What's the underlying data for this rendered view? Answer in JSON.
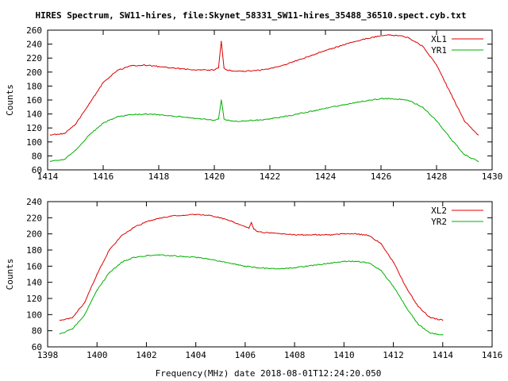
{
  "figure": {
    "title": "HIRES Spectrum, SW11-hires, file:Skynet_58331_SW11-hires_35488_36510.spect.cyb.txt",
    "xlabel": "Frequency(MHz) date 2018-08-01T12:24:20.050"
  },
  "colors": {
    "series1": "#dd0000",
    "series2": "#00b000",
    "axis": "#000000",
    "background": "#ffffff"
  },
  "chart_data": [
    {
      "type": "line",
      "title": "",
      "xlabel": "",
      "ylabel": "Counts",
      "xlim": [
        1414,
        1430
      ],
      "ylim": [
        60,
        260
      ],
      "xticks": [
        1414,
        1416,
        1418,
        1420,
        1422,
        1424,
        1426,
        1428,
        1430
      ],
      "yticks": [
        60,
        80,
        100,
        120,
        140,
        160,
        180,
        200,
        220,
        240,
        260
      ],
      "grid": false,
      "legend": "top-right",
      "series": [
        {
          "name": "XL1",
          "color": "#dd0000",
          "x": [
            1414.1,
            1414.6,
            1415.0,
            1415.5,
            1416.0,
            1416.5,
            1417.0,
            1417.5,
            1418.0,
            1418.5,
            1419.0,
            1419.5,
            1420.0,
            1420.15,
            1420.25,
            1420.3,
            1420.35,
            1420.45,
            1420.6,
            1421.0,
            1421.5,
            1422.0,
            1422.5,
            1423.0,
            1423.5,
            1424.0,
            1424.5,
            1425.0,
            1425.5,
            1426.0,
            1426.3,
            1426.7,
            1427.0,
            1427.5,
            1428.0,
            1428.5,
            1429.0,
            1429.5
          ],
          "y": [
            110,
            112,
            125,
            155,
            185,
            202,
            209,
            210,
            208,
            206,
            204,
            203,
            203,
            206,
            244,
            225,
            206,
            203,
            202,
            201,
            202,
            205,
            210,
            217,
            224,
            231,
            237,
            243,
            248,
            252,
            253,
            252,
            249,
            237,
            210,
            170,
            130,
            110
          ]
        },
        {
          "name": "YR1",
          "color": "#00b000",
          "x": [
            1414.1,
            1414.6,
            1415.0,
            1415.5,
            1416.0,
            1416.5,
            1417.0,
            1417.5,
            1418.0,
            1418.5,
            1419.0,
            1419.5,
            1420.0,
            1420.15,
            1420.25,
            1420.3,
            1420.35,
            1420.45,
            1420.6,
            1421.0,
            1421.5,
            1422.0,
            1422.5,
            1423.0,
            1423.5,
            1424.0,
            1424.5,
            1425.0,
            1425.5,
            1426.0,
            1426.3,
            1426.7,
            1427.0,
            1427.5,
            1428.0,
            1428.5,
            1429.0,
            1429.5
          ],
          "y": [
            72,
            75,
            88,
            110,
            127,
            136,
            139,
            140,
            139,
            137,
            135,
            133,
            131,
            133,
            160,
            148,
            133,
            131,
            130,
            130,
            131,
            133,
            136,
            140,
            144,
            148,
            152,
            156,
            159,
            162,
            162,
            161,
            159,
            150,
            130,
            105,
            82,
            72
          ]
        }
      ]
    },
    {
      "type": "line",
      "title": "",
      "xlabel": "Frequency(MHz) date 2018-08-01T12:24:20.050",
      "ylabel": "Counts",
      "xlim": [
        1398,
        1416
      ],
      "ylim": [
        60,
        240
      ],
      "xticks": [
        1398,
        1400,
        1402,
        1404,
        1406,
        1408,
        1410,
        1412,
        1414,
        1416
      ],
      "yticks": [
        60,
        80,
        100,
        120,
        140,
        160,
        180,
        200,
        220,
        240
      ],
      "grid": false,
      "legend": "top-right",
      "series": [
        {
          "name": "XL2",
          "color": "#dd0000",
          "x": [
            1398.5,
            1399.0,
            1399.5,
            1400.0,
            1400.5,
            1401.0,
            1401.5,
            1402.0,
            1402.5,
            1403.0,
            1403.5,
            1404.0,
            1404.5,
            1405.0,
            1405.5,
            1406.0,
            1406.15,
            1406.25,
            1406.35,
            1406.5,
            1407.0,
            1407.5,
            1408.0,
            1408.5,
            1409.0,
            1409.5,
            1410.0,
            1410.5,
            1411.0,
            1411.5,
            1412.0,
            1412.5,
            1413.0,
            1413.5,
            1414.0
          ],
          "y": [
            93,
            96,
            115,
            150,
            180,
            198,
            208,
            215,
            219,
            222,
            223,
            224,
            223,
            220,
            215,
            209,
            207,
            214,
            206,
            203,
            201,
            200,
            199,
            199,
            199,
            199,
            200,
            200,
            198,
            188,
            165,
            135,
            110,
            96,
            93
          ]
        },
        {
          "name": "YR2",
          "color": "#00b000",
          "x": [
            1398.5,
            1399.0,
            1399.5,
            1400.0,
            1400.5,
            1401.0,
            1401.5,
            1402.0,
            1402.5,
            1403.0,
            1403.5,
            1404.0,
            1404.5,
            1405.0,
            1405.5,
            1406.0,
            1406.5,
            1407.0,
            1407.5,
            1408.0,
            1408.5,
            1409.0,
            1409.5,
            1410.0,
            1410.5,
            1411.0,
            1411.5,
            1412.0,
            1412.5,
            1413.0,
            1413.5,
            1414.0
          ],
          "y": [
            76,
            82,
            100,
            130,
            152,
            165,
            171,
            173,
            174,
            173,
            172,
            171,
            169,
            166,
            163,
            160,
            158,
            157,
            157,
            158,
            160,
            162,
            164,
            166,
            166,
            164,
            155,
            135,
            110,
            88,
            77,
            75
          ]
        }
      ]
    }
  ]
}
